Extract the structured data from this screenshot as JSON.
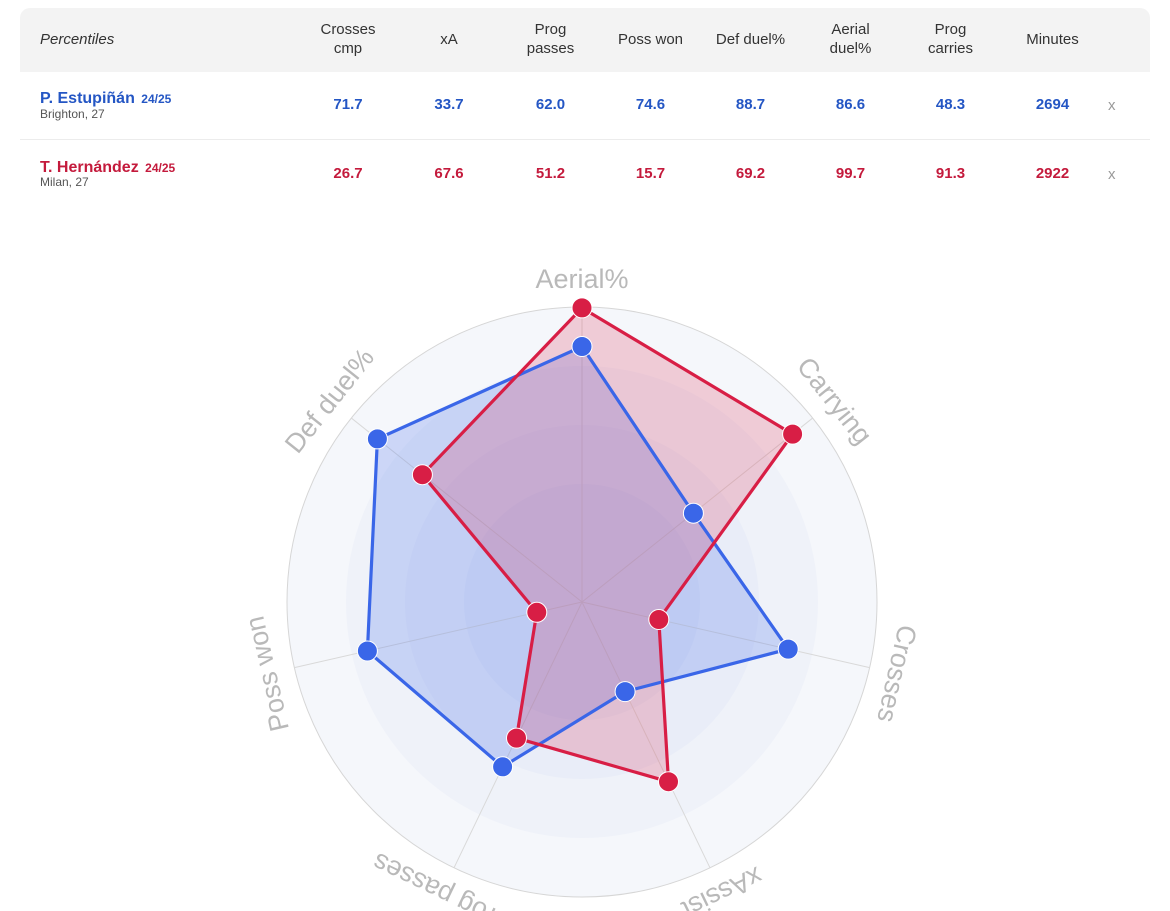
{
  "table": {
    "columns": [
      "Percentiles",
      "Crosses\ncmp",
      "xA",
      "Prog\npasses",
      "Poss won",
      "Def duel%",
      "Aerial\nduel%",
      "Prog\ncarries",
      "Minutes"
    ],
    "remove_label": "x",
    "players": [
      {
        "name": "P. Estupiñán",
        "season": "24/25",
        "club": "Brighton, 27",
        "color": "#2456c4",
        "values": [
          "71.7",
          "33.7",
          "62.0",
          "74.6",
          "88.7",
          "86.6",
          "48.3",
          "2694"
        ]
      },
      {
        "name": "T. Hernández",
        "season": "24/25",
        "club": "Milan, 27",
        "color": "#c41a3c",
        "values": [
          "26.7",
          "67.6",
          "51.2",
          "15.7",
          "69.2",
          "99.7",
          "91.3",
          "2922"
        ]
      }
    ]
  },
  "chart_data": {
    "type": "radar",
    "axes": [
      "Aerial%",
      "Carrying",
      "Crosses",
      "xAssist",
      "Prog passes",
      "Poss won",
      "Def duel%"
    ],
    "range": [
      0,
      100
    ],
    "series": [
      {
        "name": "P. Estupiñán",
        "color": "#3a66e8",
        "values": [
          86.6,
          48.3,
          71.7,
          33.7,
          62.0,
          74.6,
          88.7
        ]
      },
      {
        "name": "T. Hernández",
        "color": "#d81e45",
        "values": [
          99.7,
          91.3,
          26.7,
          67.6,
          51.2,
          15.7,
          69.2
        ]
      }
    ]
  }
}
